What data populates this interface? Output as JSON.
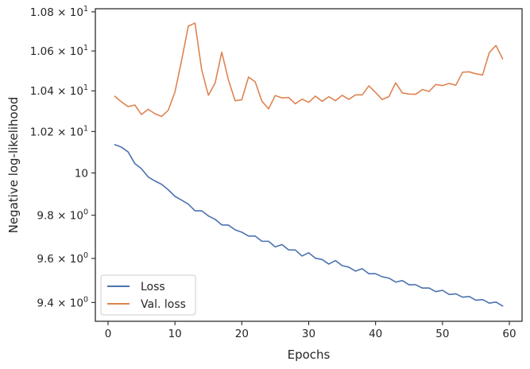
{
  "chart_data": {
    "type": "line",
    "xlabel": "Epochs",
    "ylabel": "Negative log-likelihood",
    "x_range": [
      -1.9,
      61.9
    ],
    "y_range": [
      9.316,
      10.816
    ],
    "y_scale": "log",
    "x_ticks": [
      0,
      10,
      20,
      30,
      40,
      50,
      60
    ],
    "x_tick_labels": [
      "0",
      "10",
      "20",
      "30",
      "40",
      "50",
      "60"
    ],
    "y_ticks": [
      9.4,
      9.6,
      9.8,
      10.0,
      10.2,
      10.4,
      10.6,
      10.8
    ],
    "y_tick_labels": [
      {
        "mantissa": "9.4",
        "times": " × ",
        "base": "10",
        "exp": "0"
      },
      {
        "mantissa": "9.6",
        "times": " × ",
        "base": "10",
        "exp": "0"
      },
      {
        "mantissa": "9.8",
        "times": " × ",
        "base": "10",
        "exp": "0"
      },
      {
        "mantissa": "",
        "times": "",
        "base": "10",
        "exp": "1"
      },
      {
        "mantissa": "1.02",
        "times": " × ",
        "base": "10",
        "exp": "1"
      },
      {
        "mantissa": "1.04",
        "times": " × ",
        "base": "10",
        "exp": "1"
      },
      {
        "mantissa": "1.06",
        "times": " × ",
        "base": "10",
        "exp": "1"
      },
      {
        "mantissa": "1.08",
        "times": " × ",
        "base": "10",
        "exp": "1"
      }
    ],
    "grid": false,
    "legend_position": "bottom-left",
    "x": [
      1,
      2,
      3,
      4,
      5,
      6,
      7,
      8,
      9,
      10,
      11,
      12,
      13,
      14,
      15,
      16,
      17,
      18,
      19,
      20,
      21,
      22,
      23,
      24,
      25,
      26,
      27,
      28,
      29,
      30,
      31,
      32,
      33,
      34,
      35,
      36,
      37,
      38,
      39,
      40,
      41,
      42,
      43,
      44,
      45,
      46,
      47,
      48,
      49,
      50,
      51,
      52,
      53,
      54,
      55,
      56,
      57,
      58,
      59
    ],
    "series": [
      {
        "name": "Loss",
        "color": "#4c72b0",
        "values": [
          10.136,
          10.124,
          10.101,
          10.045,
          10.02,
          9.981,
          9.962,
          9.946,
          9.92,
          9.889,
          9.871,
          9.852,
          9.821,
          9.821,
          9.797,
          9.781,
          9.755,
          9.754,
          9.732,
          9.721,
          9.703,
          9.703,
          9.679,
          9.679,
          9.653,
          9.664,
          9.639,
          9.639,
          9.611,
          9.626,
          9.601,
          9.595,
          9.574,
          9.59,
          9.567,
          9.56,
          9.542,
          9.553,
          9.53,
          9.53,
          9.516,
          9.51,
          9.492,
          9.499,
          9.48,
          9.48,
          9.465,
          9.465,
          9.449,
          9.455,
          9.436,
          9.439,
          9.424,
          9.427,
          9.41,
          9.413,
          9.397,
          9.402,
          9.384
        ]
      },
      {
        "name": "Val. loss",
        "color": "#dd8452",
        "values": [
          10.373,
          10.345,
          10.322,
          10.33,
          10.283,
          10.309,
          10.287,
          10.274,
          10.304,
          10.394,
          10.553,
          10.727,
          10.742,
          10.505,
          10.378,
          10.438,
          10.594,
          10.454,
          10.351,
          10.356,
          10.469,
          10.445,
          10.349,
          10.311,
          10.377,
          10.365,
          10.367,
          10.336,
          10.359,
          10.343,
          10.374,
          10.348,
          10.371,
          10.351,
          10.378,
          10.358,
          10.38,
          10.38,
          10.425,
          10.392,
          10.357,
          10.372,
          10.44,
          10.39,
          10.384,
          10.383,
          10.407,
          10.397,
          10.432,
          10.426,
          10.437,
          10.428,
          10.493,
          10.495,
          10.485,
          10.479,
          10.592,
          10.628,
          10.56
        ]
      }
    ]
  }
}
